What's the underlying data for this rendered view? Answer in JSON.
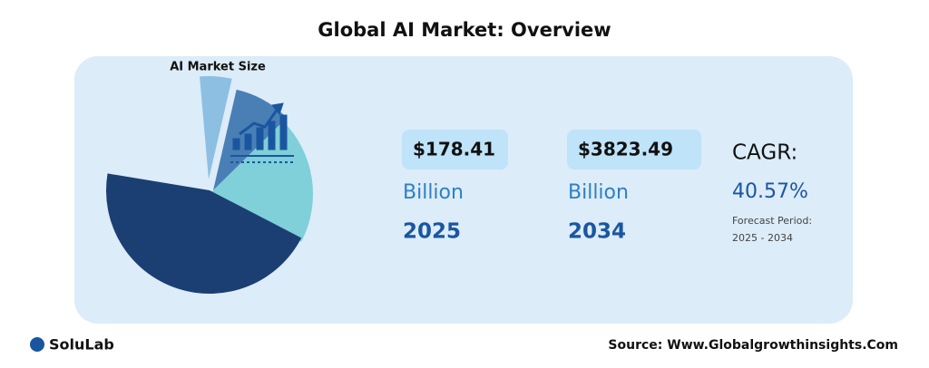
{
  "title": "Global AI Market: Overview",
  "chart_data": {
    "type": "pie",
    "title": "AI Market Size",
    "values": [
      5,
      9,
      20,
      45
    ],
    "colors": [
      "#8dbfe3",
      "#4a7fb5",
      "#7fd0d8",
      "#1b3f73"
    ]
  },
  "stats": [
    {
      "value": "$178.41",
      "unit": "Billion",
      "year": "2025"
    },
    {
      "value": "$3823.49",
      "unit": "Billion",
      "year": "2034"
    }
  ],
  "cagr": {
    "label": "CAGR:",
    "value": "40.57%",
    "note": "Forecast Period:",
    "period": "2025 - 2034"
  },
  "brand": "SoluLab",
  "source": "Source: Www.Globalgrowthinsights.Com"
}
